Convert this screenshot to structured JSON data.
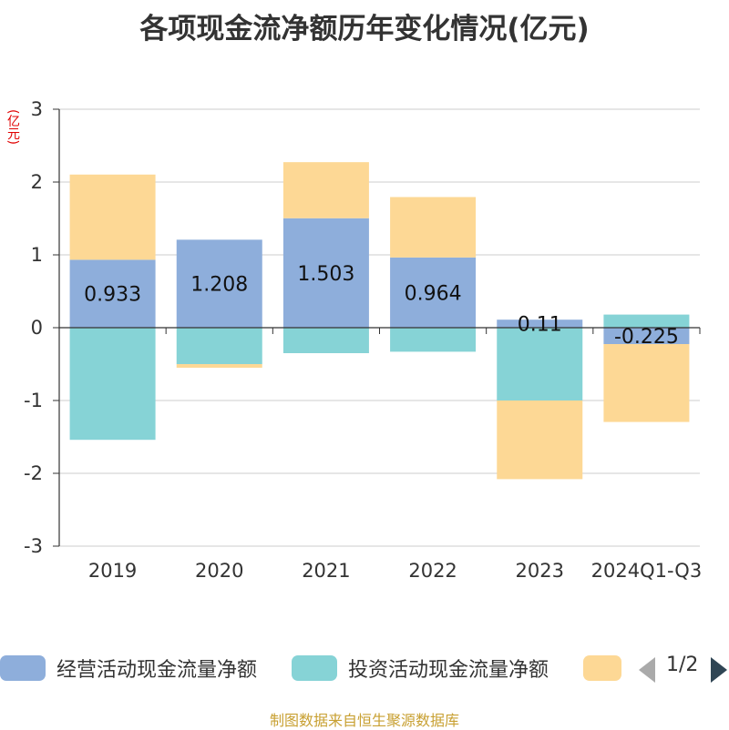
{
  "title": "各项现金流净额历年变化情况(亿元)",
  "y_unit": "(亿元)",
  "footer": "制图数据来自恒生聚源数据库",
  "legend_pager": "1/2",
  "colors": {
    "operating": "#8eaedb",
    "investing": "#86d3d6",
    "financing": "#fdd895",
    "axis": "#333333",
    "grid": "#cccccc"
  },
  "chart_data": {
    "type": "bar",
    "stacked": true,
    "categories": [
      "2019",
      "2020",
      "2021",
      "2022",
      "2023",
      "2024Q1-Q3"
    ],
    "ylim": [
      -3,
      3
    ],
    "yticks": [
      3,
      2,
      1,
      0,
      -1,
      -2,
      -3
    ],
    "series": [
      {
        "name": "经营活动现金流量净额",
        "values": [
          0.933,
          1.208,
          1.503,
          0.964,
          0.11,
          -0.225
        ],
        "labels": [
          "0.933",
          "1.208",
          "1.503",
          "0.964",
          "0.11",
          "-0.225"
        ]
      },
      {
        "name": "投资活动现金流量净额",
        "values": [
          -1.54,
          -0.5,
          -0.35,
          -0.33,
          -1.0,
          0.18
        ]
      },
      {
        "name": "",
        "values": [
          1.17,
          -0.05,
          0.77,
          0.83,
          -1.08,
          -1.07
        ]
      }
    ]
  }
}
